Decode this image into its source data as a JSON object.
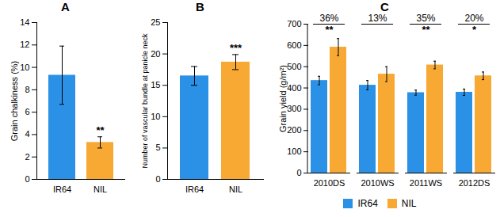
{
  "chart_data": [
    {
      "type": "bar",
      "title": "A",
      "y_label": "Grain chalkiness (%)",
      "categories": [
        "IR64",
        "NIL"
      ],
      "values": [
        9.3,
        3.3
      ],
      "errors": [
        2.6,
        0.5
      ],
      "colors": [
        "#2b91e6",
        "#f7a934"
      ],
      "significance": [
        null,
        "**"
      ],
      "ylim": [
        0,
        14
      ],
      "yticks": [
        0,
        2,
        4,
        6,
        8,
        10,
        12,
        14
      ]
    },
    {
      "type": "bar",
      "title": "B",
      "y_label": "Number of vascular bundle at panicle neck",
      "categories": [
        "IR64",
        "NIL"
      ],
      "values": [
        16.5,
        18.7
      ],
      "errors": [
        1.5,
        1.2
      ],
      "colors": [
        "#2b91e6",
        "#f7a934"
      ],
      "significance": [
        null,
        "***"
      ],
      "ylim": [
        0,
        25
      ],
      "yticks": [
        0,
        5,
        10,
        15,
        20,
        25
      ]
    },
    {
      "type": "bar",
      "title": "C",
      "y_label": "Grain yield (g/m²)",
      "categories": [
        "2010DS",
        "2010WS",
        "2011WS",
        "2012DS"
      ],
      "series": [
        {
          "name": "IR64",
          "color": "#2b91e6",
          "values": [
            435,
            413,
            378,
            380
          ],
          "errors": [
            20,
            22,
            12,
            15
          ]
        },
        {
          "name": "NIL",
          "color": "#f7a934",
          "values": [
            592,
            465,
            508,
            457
          ],
          "errors": [
            40,
            35,
            18,
            18
          ]
        }
      ],
      "annotations": [
        "36%",
        "13%",
        "35%",
        "20%"
      ],
      "significance": [
        "**",
        null,
        "**",
        "*"
      ],
      "legend": "bottom",
      "ylim": [
        0,
        700
      ],
      "yticks": [
        0,
        100,
        200,
        300,
        400,
        500,
        600,
        700
      ]
    }
  ]
}
